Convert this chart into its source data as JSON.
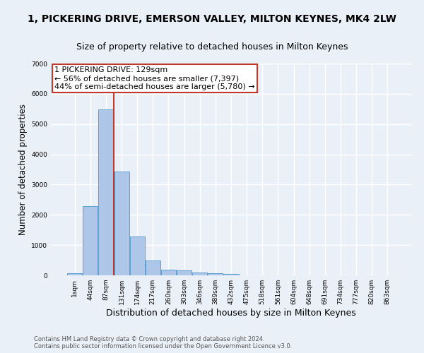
{
  "title": "1, PICKERING DRIVE, EMERSON VALLEY, MILTON KEYNES, MK4 2LW",
  "subtitle": "Size of property relative to detached houses in Milton Keynes",
  "xlabel": "Distribution of detached houses by size in Milton Keynes",
  "ylabel": "Number of detached properties",
  "footer_line1": "Contains HM Land Registry data © Crown copyright and database right 2024.",
  "footer_line2": "Contains public sector information licensed under the Open Government Licence v3.0.",
  "bar_labels": [
    "1sqm",
    "44sqm",
    "87sqm",
    "131sqm",
    "174sqm",
    "217sqm",
    "260sqm",
    "303sqm",
    "346sqm",
    "389sqm",
    "432sqm",
    "475sqm",
    "518sqm",
    "561sqm",
    "604sqm",
    "648sqm",
    "691sqm",
    "734sqm",
    "777sqm",
    "820sqm",
    "863sqm"
  ],
  "bar_values": [
    70,
    2280,
    5490,
    3420,
    1295,
    490,
    195,
    155,
    90,
    65,
    50,
    0,
    0,
    0,
    0,
    0,
    0,
    0,
    0,
    0,
    0
  ],
  "bar_color": "#aec6e8",
  "bar_edge_color": "#5a9fd4",
  "vline_color": "#c0392b",
  "vline_x_pos": 2.5,
  "annotation_line1": "1 PICKERING DRIVE: 129sqm",
  "annotation_line2": "← 56% of detached houses are smaller (7,397)",
  "annotation_line3": "44% of semi-detached houses are larger (5,780) →",
  "annotation_box_color": "#c0392b",
  "annotation_box_facecolor": "white",
  "ylim": [
    0,
    7000
  ],
  "yticks": [
    0,
    1000,
    2000,
    3000,
    4000,
    5000,
    6000,
    7000
  ],
  "bg_color": "#eaf0f8",
  "plot_bg_color": "#eaf0f8",
  "grid_color": "white",
  "title_fontsize": 10,
  "subtitle_fontsize": 9,
  "xlabel_fontsize": 9,
  "ylabel_fontsize": 8.5,
  "annotation_fontsize": 8,
  "tick_fontsize": 6.5,
  "footer_fontsize": 6,
  "footer_color": "#555555"
}
